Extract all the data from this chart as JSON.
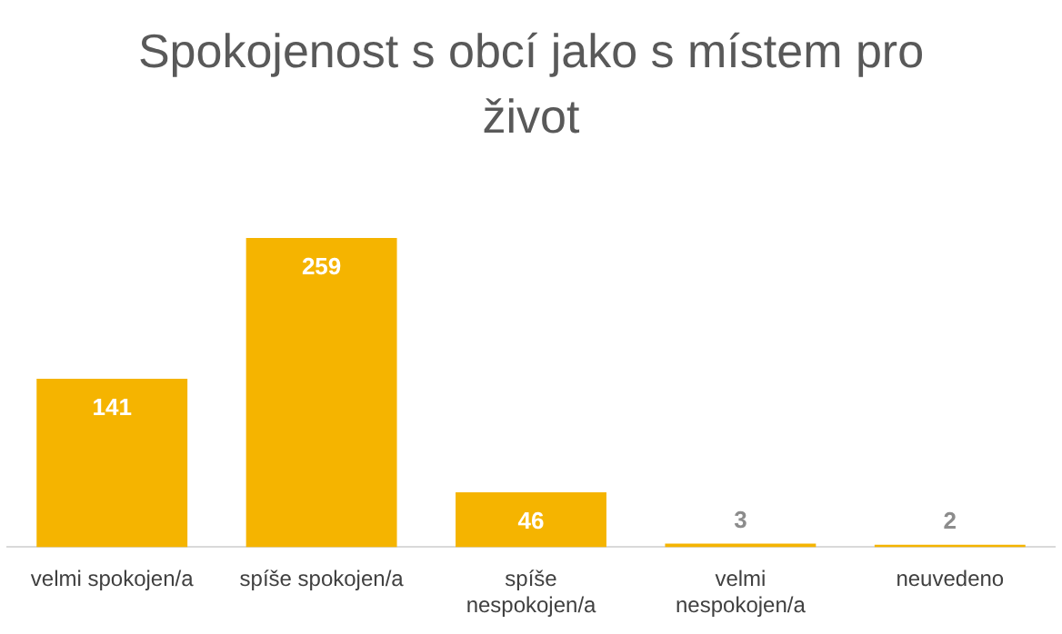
{
  "chart_data": {
    "type": "bar",
    "title": "Spokojenost s obcí jako s místem pro život",
    "categories": [
      "velmi spokojen/a",
      "spíše spokojen/a",
      "spíše nespokojen/a",
      "velmi nespokojen/a",
      "neuvedeno"
    ],
    "values": [
      141,
      259,
      46,
      3,
      2
    ],
    "color": "#f5b400",
    "data_labels": true,
    "grid": false,
    "legend": false
  }
}
